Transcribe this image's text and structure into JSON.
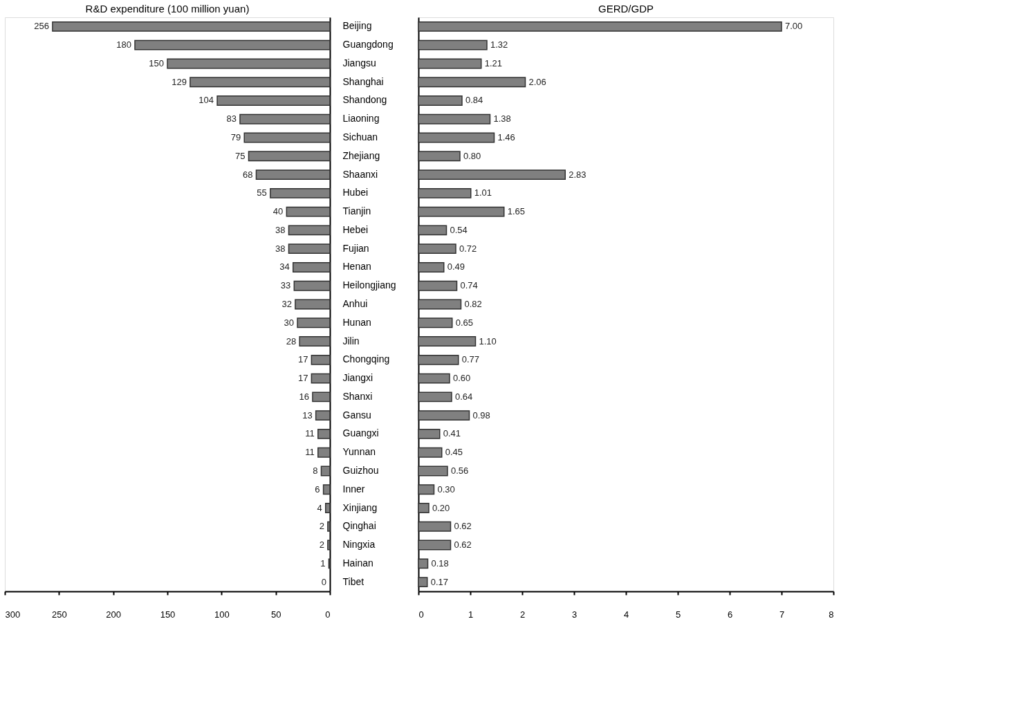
{
  "chart_data": [
    {
      "type": "bar",
      "orientation": "horizontal",
      "title": "R&D expenditure (100 million yuan)",
      "color": "#808080",
      "data_labels": true,
      "grid": false,
      "xlim": [
        300,
        0
      ],
      "xticks": [
        300,
        250,
        200,
        150,
        100,
        50,
        0
      ],
      "categories": [
        "Beijing",
        "Guangdong",
        "Jiangsu",
        "Shanghai",
        "Shandong",
        "Liaoning",
        "Sichuan",
        "Zhejiang",
        "Shaanxi",
        "Hubei",
        "Tianjin",
        "Hebei",
        "Fujian",
        "Henan",
        "Heilongjiang",
        "Anhui",
        "Hunan",
        "Jilin",
        "Chongqing",
        "Jiangxi",
        "Shanxi",
        "Gansu",
        "Guangxi",
        "Yunnan",
        "Guizhou",
        "Inner",
        "Xinjiang",
        "Qinghai",
        "Ningxia",
        "Hainan",
        "Tibet"
      ],
      "values": [
        256,
        180,
        150,
        129,
        104,
        83,
        79,
        75,
        68,
        55,
        40,
        38,
        38,
        34,
        33,
        32,
        30,
        28,
        17,
        17,
        16,
        13,
        11,
        11,
        8,
        6,
        4,
        2,
        2,
        1,
        0
      ]
    },
    {
      "type": "bar",
      "orientation": "horizontal",
      "title": "GERD/GDP",
      "color": "#808080",
      "value_labels": [
        "7.00",
        "1.32",
        "1.21",
        "2.06",
        "0.84",
        "1.38",
        "1.46",
        "0.80",
        "2.83",
        "1.01",
        "1.65",
        "0.54",
        "0.72",
        "0.49",
        "0.74",
        "0.82",
        "0.65",
        "1.10",
        "0.77",
        "0.60",
        "0.64",
        "0.98",
        "0.41",
        "0.45",
        "0.56",
        "0.30",
        "0.20",
        "0.62",
        "0.62",
        "0.18",
        "0.17"
      ],
      "grid": false,
      "tick_labels": "x",
      "xlim": [
        0,
        8
      ],
      "xticks": [
        0,
        1,
        2,
        3,
        4,
        5,
        6,
        7,
        8
      ],
      "values": [
        7.0,
        1.32,
        1.21,
        2.06,
        0.84,
        1.38,
        1.46,
        0.8,
        2.83,
        1.01,
        1.65,
        0.54,
        0.72,
        0.49,
        0.74,
        0.82,
        0.65,
        1.1,
        0.77,
        0.6,
        0.64,
        0.98,
        0.41,
        0.45,
        0.56,
        0.3,
        0.2,
        0.62,
        0.62,
        0.18,
        0.17
      ]
    }
  ]
}
